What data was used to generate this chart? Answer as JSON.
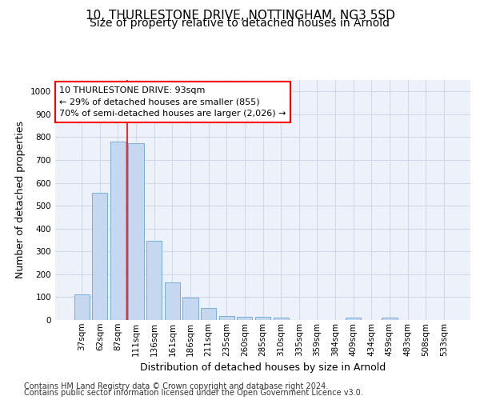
{
  "title_line1": "10, THURLESTONE DRIVE, NOTTINGHAM, NG3 5SD",
  "title_line2": "Size of property relative to detached houses in Arnold",
  "xlabel": "Distribution of detached houses by size in Arnold",
  "ylabel": "Number of detached properties",
  "categories": [
    "37sqm",
    "62sqm",
    "87sqm",
    "111sqm",
    "136sqm",
    "161sqm",
    "186sqm",
    "211sqm",
    "235sqm",
    "260sqm",
    "285sqm",
    "310sqm",
    "335sqm",
    "359sqm",
    "384sqm",
    "409sqm",
    "434sqm",
    "459sqm",
    "483sqm",
    "508sqm",
    "533sqm"
  ],
  "values": [
    112,
    558,
    780,
    775,
    345,
    165,
    98,
    53,
    18,
    15,
    15,
    10,
    0,
    0,
    0,
    10,
    0,
    10,
    0,
    0,
    0
  ],
  "bar_color": "#c5d8f0",
  "bar_edge_color": "#7aadd4",
  "grid_color": "#d0d8e8",
  "background_color": "#edf2fa",
  "annotation_text": "10 THURLESTONE DRIVE: 93sqm\n← 29% of detached houses are smaller (855)\n70% of semi-detached houses are larger (2,026) →",
  "property_line_x": 2.5,
  "ylim": [
    0,
    1050
  ],
  "yticks": [
    0,
    100,
    200,
    300,
    400,
    500,
    600,
    700,
    800,
    900,
    1000
  ],
  "footnote_line1": "Contains HM Land Registry data © Crown copyright and database right 2024.",
  "footnote_line2": "Contains public sector information licensed under the Open Government Licence v3.0.",
  "title_fontsize": 11,
  "subtitle_fontsize": 10,
  "axis_label_fontsize": 9,
  "tick_fontsize": 7.5,
  "annotation_fontsize": 8,
  "footnote_fontsize": 7
}
